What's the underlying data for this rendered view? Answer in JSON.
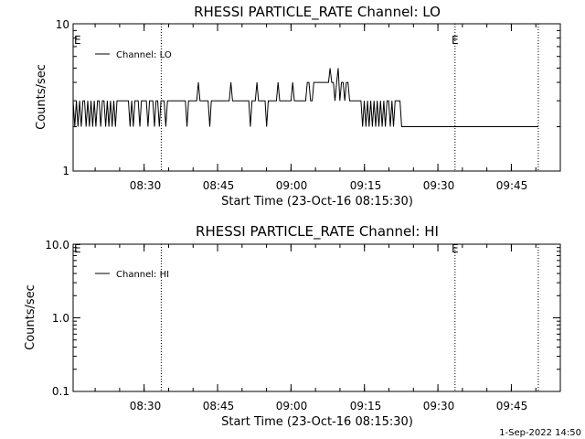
{
  "chart_data": [
    {
      "type": "line",
      "title": "RHESSI PARTICLE_RATE Channel: LO",
      "xlabel": "Start Time (23-Oct-16 08:15:30)",
      "ylabel": "Counts/sec",
      "yscale": "log",
      "ylim": [
        1,
        10
      ],
      "ytick_labels": [
        "1",
        "10"
      ],
      "xlim": [
        "08:15:30",
        "09:55:00"
      ],
      "xtick_labels": [
        "08:30",
        "08:45",
        "09:00",
        "09:15",
        "09:30",
        "09:45"
      ],
      "legend": {
        "entries": [
          "Channel: LO"
        ],
        "location": "top-left"
      },
      "markers": [
        {
          "time": "08:15:30",
          "label": "E",
          "dotted": false
        },
        {
          "time": "08:33:30",
          "label": "",
          "dotted": true
        },
        {
          "time": "09:33:30",
          "label": "E",
          "dotted": true
        },
        {
          "time": "09:50:30",
          "label": "",
          "dotted": true
        }
      ],
      "series": [
        {
          "name": "Channel: LO",
          "x_start": "08:15:30",
          "x_step_seconds": 20,
          "x_end": "09:50:30",
          "values": [
            3,
            2,
            3,
            2,
            3,
            2,
            3,
            3,
            2,
            3,
            2,
            3,
            2,
            3,
            2,
            3,
            3,
            2,
            3,
            3,
            2,
            3,
            2,
            3,
            2,
            3,
            2,
            3,
            3,
            3,
            3,
            3,
            3,
            3,
            3,
            2,
            3,
            2,
            3,
            3,
            3,
            2,
            3,
            3,
            3,
            3,
            2,
            3,
            3,
            3,
            2,
            3,
            3,
            2,
            3,
            3,
            3,
            2,
            3,
            3,
            3,
            3,
            3,
            3,
            3,
            3,
            3,
            3,
            3,
            3,
            2,
            3,
            3,
            3,
            3,
            3,
            3,
            4,
            3,
            3,
            3,
            3,
            3,
            3,
            2,
            3,
            3,
            3,
            3,
            3,
            3,
            3,
            3,
            3,
            3,
            3,
            3,
            4,
            3,
            3,
            3,
            3,
            3,
            3,
            3,
            3,
            3,
            3,
            3,
            2,
            3,
            3,
            3,
            4,
            3,
            3,
            3,
            3,
            3,
            2,
            3,
            3,
            3,
            3,
            3,
            3,
            4,
            3,
            3,
            3,
            3,
            3,
            3,
            3,
            3,
            4,
            3,
            3,
            3,
            3,
            3,
            3,
            3,
            3,
            4,
            4,
            3,
            3,
            4,
            4,
            4,
            4,
            4,
            4,
            4,
            4,
            4,
            4,
            5,
            4,
            4,
            3,
            4,
            5,
            3,
            4,
            4,
            3,
            4,
            4,
            3,
            3,
            3,
            3,
            3,
            3,
            3,
            3,
            2,
            3,
            2,
            3,
            2,
            3,
            2,
            3,
            2,
            3,
            2,
            3,
            2,
            3,
            2,
            3,
            3,
            2,
            3,
            2,
            3,
            3,
            3,
            3,
            2,
            2,
            2,
            2,
            2,
            2,
            2,
            2,
            2,
            2,
            2,
            2,
            2,
            2,
            2,
            2,
            2,
            2,
            2,
            2,
            2,
            2,
            2,
            2,
            2,
            2,
            2,
            2,
            2,
            2,
            2,
            2,
            2,
            2,
            2,
            2,
            2,
            2,
            2,
            2,
            2,
            2,
            2,
            2,
            2,
            2,
            2,
            2,
            2,
            2,
            2,
            2,
            2,
            2,
            2,
            2,
            2,
            2,
            2,
            2,
            2,
            2,
            2,
            2,
            2,
            2,
            2,
            2,
            2,
            2,
            2,
            2,
            2,
            2,
            2,
            2,
            2,
            2,
            2,
            2,
            2,
            2,
            2,
            2,
            2
          ]
        }
      ]
    },
    {
      "type": "line",
      "title": "RHESSI PARTICLE_RATE Channel: HI",
      "xlabel": "Start Time (23-Oct-16 08:15:30)",
      "ylabel": "Counts/sec",
      "yscale": "log",
      "ylim": [
        0.1,
        10
      ],
      "ytick_labels": [
        "0.1",
        "1.0",
        "10.0"
      ],
      "xlim": [
        "08:15:30",
        "09:55:00"
      ],
      "xtick_labels": [
        "08:30",
        "08:45",
        "09:00",
        "09:15",
        "09:30",
        "09:45"
      ],
      "legend": {
        "entries": [
          "Channel: HI"
        ],
        "location": "top-left"
      },
      "markers": [
        {
          "time": "08:15:30",
          "label": "E",
          "dotted": false
        },
        {
          "time": "08:33:30",
          "label": "",
          "dotted": true
        },
        {
          "time": "09:33:30",
          "label": "E",
          "dotted": true
        },
        {
          "time": "09:50:30",
          "label": "",
          "dotted": true
        }
      ],
      "series": [
        {
          "name": "Channel: HI",
          "values": []
        }
      ]
    }
  ],
  "footer": {
    "date_stamp": "1-Sep-2022 14:50"
  }
}
